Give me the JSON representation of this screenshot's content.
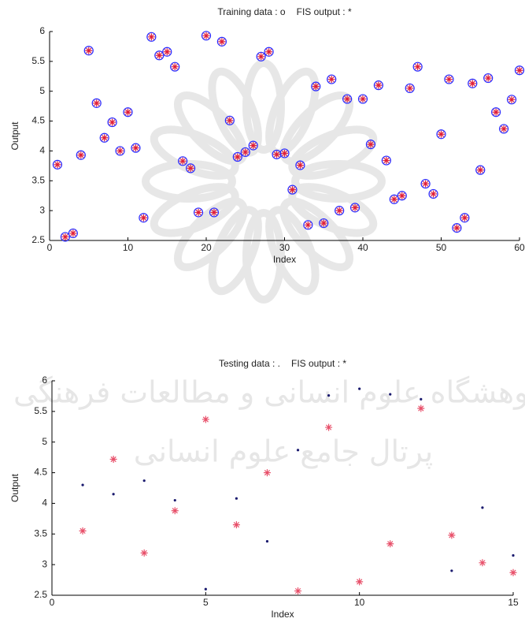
{
  "watermark": {
    "lines": [
      "پژوهشگاه علوم انسانی و مطالعات فرهنگی",
      "پرتال جامع علوم انسانی"
    ]
  },
  "chart_data": [
    {
      "type": "scatter",
      "xlabel": "Index",
      "ylabel": "Output",
      "xlim": [
        0,
        60
      ],
      "xticks": [
        0,
        10,
        20,
        30,
        40,
        50,
        60
      ],
      "ylim": [
        2.5,
        6
      ],
      "yticks": [
        2.5,
        3,
        3.5,
        4,
        4.5,
        5,
        5.5,
        6
      ],
      "x": [
        1,
        2,
        3,
        4,
        5,
        6,
        7,
        8,
        9,
        10,
        11,
        12,
        13,
        14,
        15,
        16,
        17,
        18,
        19,
        20,
        21,
        22,
        23,
        24,
        25,
        26,
        27,
        28,
        29,
        30,
        31,
        32,
        33,
        34,
        35,
        36,
        37,
        38,
        39,
        40,
        41,
        42,
        43,
        44,
        45,
        46,
        47,
        48,
        49,
        50,
        51,
        52,
        53,
        54,
        55,
        56,
        57,
        58,
        59,
        60
      ],
      "series": [
        {
          "name": "Training data : o",
          "marker": "circle",
          "color": "#2a2aff",
          "values": [
            3.77,
            2.56,
            2.62,
            3.93,
            5.68,
            4.8,
            4.22,
            4.48,
            4.0,
            4.65,
            4.05,
            2.88,
            5.91,
            5.6,
            5.66,
            5.41,
            3.83,
            3.71,
            2.97,
            5.93,
            2.97,
            5.83,
            4.51,
            3.9,
            3.98,
            4.09,
            5.58,
            5.66,
            3.94,
            3.96,
            3.35,
            3.76,
            2.76,
            5.08,
            2.79,
            5.2,
            3.0,
            4.87,
            3.05,
            4.87,
            4.11,
            5.1,
            3.84,
            3.19,
            3.25,
            5.05,
            5.41,
            3.45,
            3.28,
            4.28,
            5.2,
            2.71,
            2.88,
            5.13,
            3.68,
            5.22,
            4.65,
            4.37,
            4.86,
            5.35
          ]
        },
        {
          "name": "FIS output : *",
          "marker": "star",
          "color": "#e0203a",
          "values": [
            3.77,
            2.56,
            2.62,
            3.93,
            5.68,
            4.8,
            4.22,
            4.48,
            4.0,
            4.65,
            4.05,
            2.88,
            5.91,
            5.6,
            5.66,
            5.41,
            3.83,
            3.71,
            2.97,
            5.93,
            2.97,
            5.83,
            4.51,
            3.9,
            3.98,
            4.09,
            5.58,
            5.66,
            3.94,
            3.96,
            3.35,
            3.76,
            2.76,
            5.08,
            2.79,
            5.2,
            3.0,
            4.87,
            3.05,
            4.87,
            4.11,
            5.1,
            3.84,
            3.19,
            3.25,
            5.05,
            5.41,
            3.45,
            3.28,
            4.28,
            5.2,
            2.71,
            2.88,
            5.13,
            3.68,
            5.22,
            4.65,
            4.37,
            4.86,
            5.35
          ]
        }
      ]
    },
    {
      "type": "scatter",
      "xlabel": "Index",
      "ylabel": "Output",
      "xlim": [
        0,
        15
      ],
      "xticks": [
        0,
        5,
        10,
        15
      ],
      "ylim": [
        2.5,
        6
      ],
      "yticks": [
        2.5,
        3,
        3.5,
        4,
        4.5,
        5,
        5.5,
        6
      ],
      "x": [
        1,
        2,
        3,
        4,
        5,
        6,
        7,
        8,
        9,
        10,
        11,
        12,
        13,
        14,
        15
      ],
      "series": [
        {
          "name": "Testing data : .",
          "marker": "dot",
          "color": "#1a1a6e",
          "values": [
            4.3,
            4.15,
            4.37,
            4.05,
            2.6,
            4.08,
            3.38,
            4.87,
            5.76,
            5.87,
            5.78,
            5.7,
            2.9,
            3.93,
            3.15
          ]
        },
        {
          "name": "FIS output : *",
          "marker": "star",
          "color": "#e8506a",
          "values": [
            3.55,
            4.72,
            3.19,
            3.88,
            5.37,
            3.65,
            4.5,
            2.57,
            5.24,
            2.72,
            3.34,
            5.55,
            3.48,
            3.03,
            2.87
          ]
        }
      ]
    }
  ]
}
